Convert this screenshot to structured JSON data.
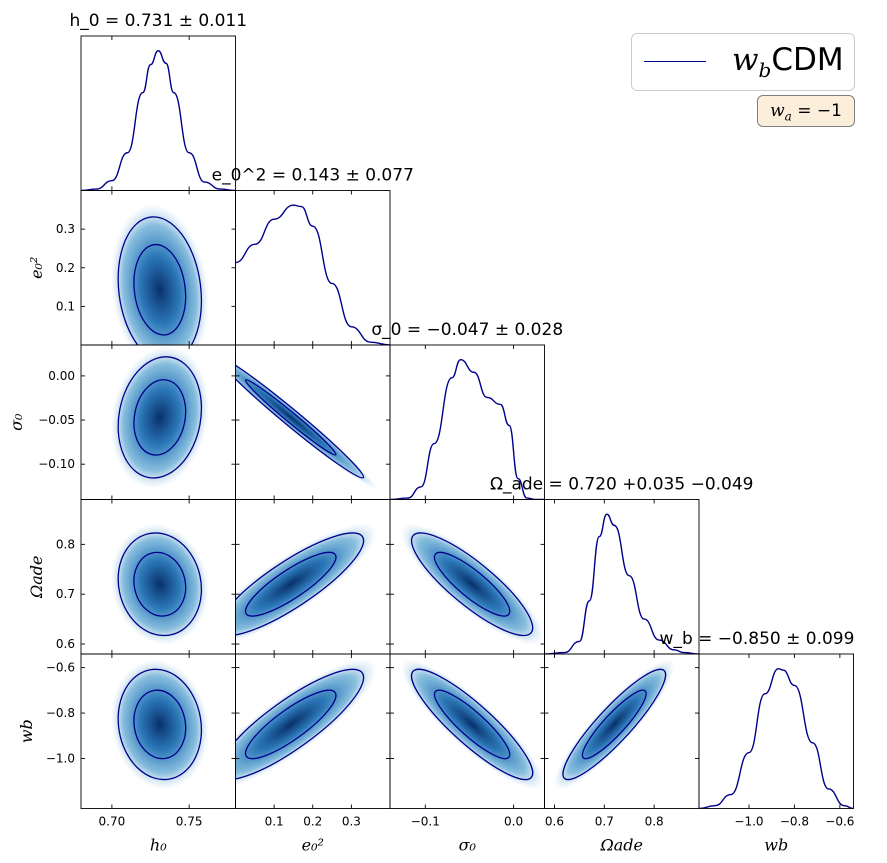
{
  "legend": {
    "label": "w_bCDM",
    "line_color": "#00008b",
    "note": "w_a = −1",
    "note_bg": "#fbeedb"
  },
  "colors": {
    "contour": "#00008b",
    "fill": "#08519c"
  },
  "chart_data": {
    "type": "corner",
    "parameters": [
      {
        "key": "h0",
        "label": "h_0",
        "mean": 0.731,
        "err_plus": 0.011,
        "err_minus": 0.011,
        "title": "h_0 = 0.731 ± 0.011",
        "range": [
          0.68,
          0.78
        ],
        "ticks": [
          0.7,
          0.75
        ],
        "tick_labels": [
          "0.70",
          "0.75"
        ]
      },
      {
        "key": "e02",
        "label": "e_0^2",
        "mean": 0.143,
        "err_plus": 0.077,
        "err_minus": 0.077,
        "title": "e_0^2 = 0.143 ± 0.077",
        "range": [
          0.0,
          0.4
        ],
        "ticks": [
          0.1,
          0.2,
          0.3
        ],
        "tick_labels": [
          "0.1",
          "0.2",
          "0.3"
        ]
      },
      {
        "key": "sigma0",
        "label": "σ_0",
        "mean": -0.047,
        "err_plus": 0.028,
        "err_minus": 0.028,
        "title": "σ_0 = −0.047 ± 0.028",
        "range": [
          -0.14,
          0.035
        ],
        "ticks": [
          -0.1,
          -0.05,
          0.0
        ],
        "tick_labels": [
          "−0.10",
          "−0.05",
          "0.00"
        ],
        "x_ticks": [
          -0.1,
          0.0
        ],
        "x_tick_labels": [
          "−0.1",
          "0.0"
        ]
      },
      {
        "key": "omega_ade",
        "label": "Ω_ade",
        "mean": 0.72,
        "err_plus": 0.035,
        "err_minus": 0.049,
        "title": "Ω_ade = 0.720 +0.035 −0.049",
        "range": [
          0.58,
          0.89
        ],
        "ticks": [
          0.6,
          0.7,
          0.8
        ],
        "tick_labels": [
          "0.6",
          "0.7",
          "0.8"
        ]
      },
      {
        "key": "wb",
        "label": "w_b",
        "mean": -0.85,
        "err_plus": 0.099,
        "err_minus": 0.099,
        "title": "w_b = −0.850 ± 0.099",
        "range": [
          -1.22,
          -0.54
        ],
        "ticks": [
          -1.0,
          -0.8,
          -0.6
        ],
        "tick_labels": [
          "−1.0",
          "−0.8",
          "−0.6"
        ]
      }
    ],
    "correlations": [
      {
        "pair": [
          "h0",
          "e02"
        ],
        "rho": -0.15
      },
      {
        "pair": [
          "h0",
          "sigma0"
        ],
        "rho": 0.15
      },
      {
        "pair": [
          "h0",
          "omega_ade"
        ],
        "rho": -0.1
      },
      {
        "pair": [
          "h0",
          "wb"
        ],
        "rho": -0.1
      },
      {
        "pair": [
          "e02",
          "sigma0"
        ],
        "rho": -0.985
      },
      {
        "pair": [
          "e02",
          "omega_ade"
        ],
        "rho": 0.85
      },
      {
        "pair": [
          "e02",
          "wb"
        ],
        "rho": 0.85
      },
      {
        "pair": [
          "sigma0",
          "omega_ade"
        ],
        "rho": -0.85
      },
      {
        "pair": [
          "sigma0",
          "wb"
        ],
        "rho": -0.88
      },
      {
        "pair": [
          "omega_ade",
          "wb"
        ],
        "rho": 0.9
      }
    ],
    "marginals": [
      {
        "key": "h0",
        "x": [
          0.68,
          0.69,
          0.7,
          0.71,
          0.72,
          0.725,
          0.73,
          0.735,
          0.74,
          0.75,
          0.76,
          0.77,
          0.78
        ],
        "y": [
          0.0,
          0.01,
          0.07,
          0.27,
          0.7,
          0.9,
          1.0,
          0.91,
          0.7,
          0.27,
          0.06,
          0.01,
          0.0
        ]
      },
      {
        "key": "e02",
        "x": [
          0.0,
          0.05,
          0.1,
          0.15,
          0.17,
          0.2,
          0.25,
          0.3,
          0.35,
          0.4
        ],
        "y": [
          0.59,
          0.72,
          0.9,
          1.0,
          0.99,
          0.85,
          0.44,
          0.13,
          0.02,
          0.0
        ]
      },
      {
        "key": "sigma0",
        "x": [
          -0.14,
          -0.12,
          -0.105,
          -0.09,
          -0.07,
          -0.06,
          -0.045,
          -0.03,
          -0.015,
          -0.005,
          0.005,
          0.015,
          0.025,
          0.035
        ],
        "y": [
          0.0,
          0.01,
          0.09,
          0.4,
          0.87,
          1.0,
          0.91,
          0.73,
          0.68,
          0.53,
          0.15,
          0.01,
          0.0,
          0.0
        ]
      },
      {
        "key": "omega_ade",
        "x": [
          0.58,
          0.62,
          0.65,
          0.67,
          0.69,
          0.705,
          0.72,
          0.75,
          0.78,
          0.81,
          0.84,
          0.86,
          0.89
        ],
        "y": [
          0.0,
          0.01,
          0.09,
          0.38,
          0.84,
          1.0,
          0.92,
          0.56,
          0.25,
          0.1,
          0.03,
          0.01,
          0.0
        ]
      },
      {
        "key": "wb",
        "x": [
          -1.22,
          -1.15,
          -1.08,
          -1.0,
          -0.93,
          -0.87,
          -0.85,
          -0.8,
          -0.72,
          -0.65,
          -0.58,
          -0.54
        ],
        "y": [
          0.0,
          0.02,
          0.1,
          0.4,
          0.82,
          1.0,
          0.99,
          0.88,
          0.47,
          0.14,
          0.02,
          0.0
        ]
      }
    ]
  }
}
